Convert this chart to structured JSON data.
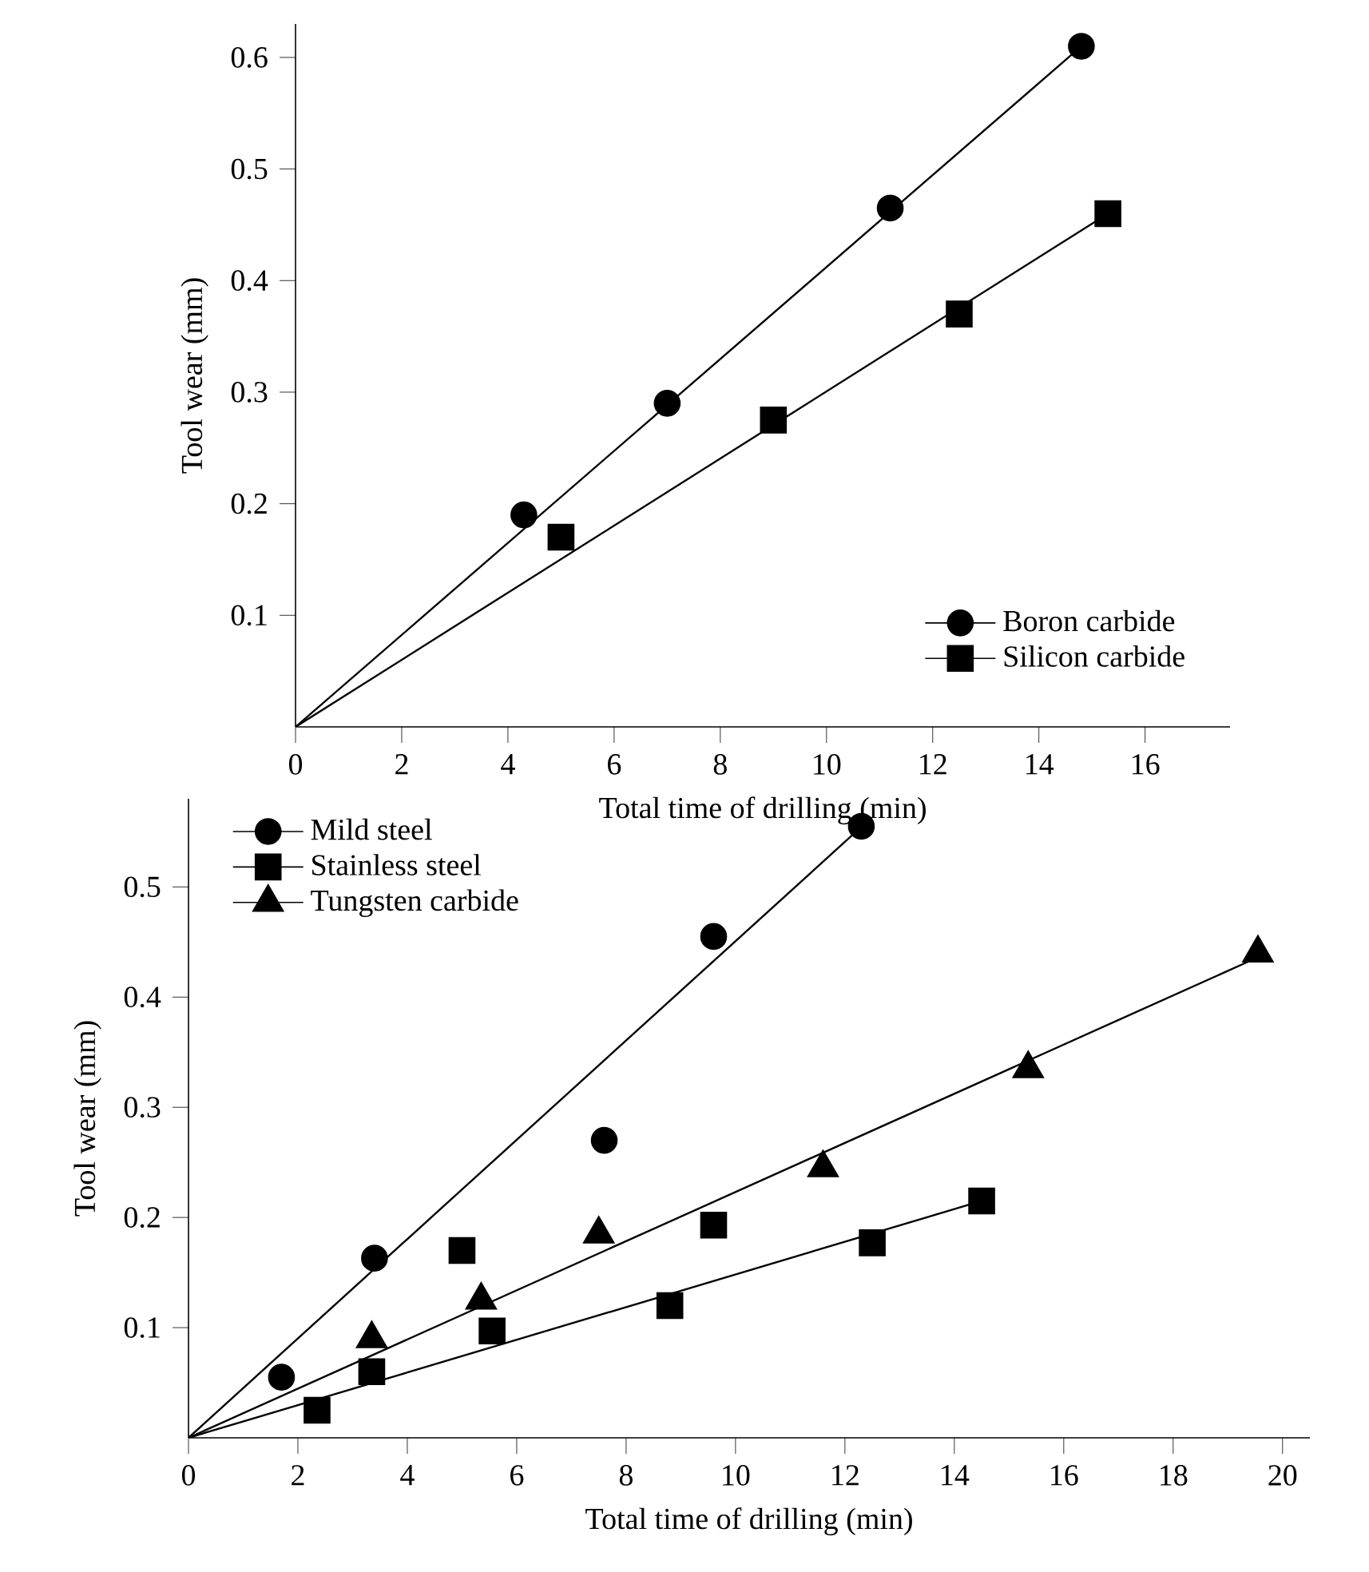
{
  "chart_data": [
    {
      "type": "scatter",
      "xlabel": "Total time of drilling (min)",
      "ylabel": "Tool wear (mm)",
      "xlim": [
        0,
        17.6
      ],
      "ylim": [
        0,
        0.63
      ],
      "xticks": [
        0,
        2,
        4,
        6,
        8,
        10,
        12,
        14,
        16
      ],
      "yticks": [
        0.1,
        0.2,
        0.3,
        0.4,
        0.5,
        0.6
      ],
      "legend": "bottom right",
      "series": [
        {
          "name": "Boron carbide",
          "color": "#000000",
          "marker": "circle",
          "x": [
            4.3,
            7.0,
            11.2,
            14.8
          ],
          "values": [
            0.19,
            0.29,
            0.465,
            0.61
          ]
        },
        {
          "name": "Silicon carbide",
          "color": "#000000",
          "marker": "square",
          "x": [
            5.0,
            9.0,
            12.5,
            15.3
          ],
          "values": [
            0.17,
            0.275,
            0.37,
            0.46
          ]
        },
        {
          "type": "line",
          "color": "#000000",
          "marker": "none",
          "x": [
            0,
            14.8
          ],
          "values": [
            0,
            0.61
          ]
        },
        {
          "type": "line",
          "color": "#000000",
          "marker": "none",
          "x": [
            0,
            15.3
          ],
          "values": [
            0,
            0.46
          ]
        }
      ]
    },
    {
      "type": "scatter",
      "xlabel": "Total time of drilling (min)",
      "ylabel": "Tool wear (mm)",
      "xlim": [
        0,
        20.5
      ],
      "ylim": [
        0,
        0.58
      ],
      "xticks": [
        0,
        2,
        4,
        6,
        8,
        10,
        12,
        14,
        16,
        18,
        20
      ],
      "yticks": [
        0.1,
        0.2,
        0.3,
        0.4,
        0.5
      ],
      "legend": "top left",
      "series": [
        {
          "name": "Mild steel",
          "color": "#000000",
          "marker": "circle",
          "x": [
            1.7,
            3.4,
            7.6,
            9.6,
            12.3
          ],
          "values": [
            0.055,
            0.163,
            0.27,
            0.455,
            0.555
          ]
        },
        {
          "name": "Stainless steel",
          "color": "#000000",
          "marker": "square",
          "x": [
            2.35,
            3.35,
            5.0,
            5.55,
            8.8,
            9.6,
            12.5,
            14.5
          ],
          "values": [
            0.025,
            0.06,
            0.17,
            0.097,
            0.12,
            0.193,
            0.177,
            0.215
          ]
        },
        {
          "name": "Tungsten carbide",
          "color": "#000000",
          "marker": "triangle",
          "x": [
            3.35,
            5.35,
            7.5,
            11.6,
            15.35,
            19.55
          ],
          "values": [
            0.09,
            0.125,
            0.185,
            0.245,
            0.335,
            0.44
          ]
        },
        {
          "type": "line",
          "color": "#000000",
          "marker": "none",
          "x": [
            0,
            12.2
          ],
          "values": [
            0,
            0.55
          ]
        },
        {
          "type": "line",
          "color": "#000000",
          "marker": "none",
          "x": [
            0,
            14.5
          ],
          "values": [
            0,
            0.215
          ]
        },
        {
          "type": "line",
          "color": "#000000",
          "marker": "none",
          "x": [
            0,
            19.5
          ],
          "values": [
            0,
            0.435
          ]
        }
      ]
    }
  ]
}
